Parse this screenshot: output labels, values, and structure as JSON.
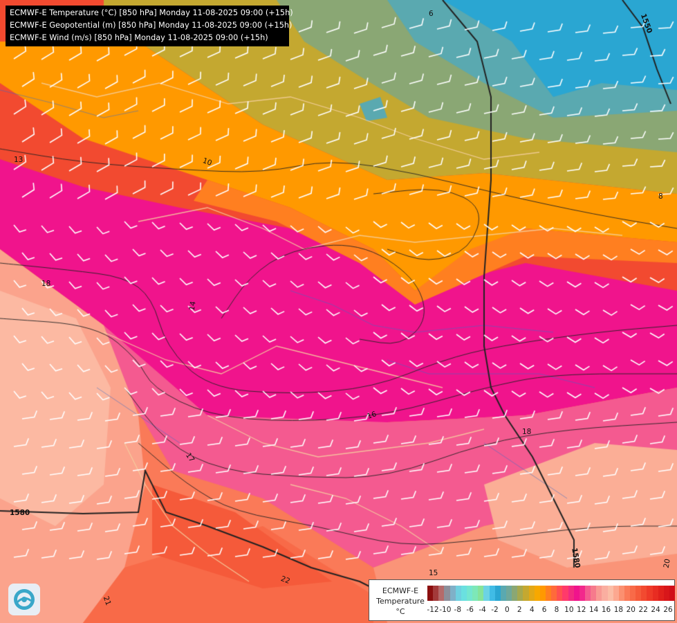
{
  "title_lines": [
    "ECMWF-E Temperature (°C) [850 hPa] Monday 11-08-2025 09:00 (+15h)",
    "ECMWF-E Geopotential (m) [850 hPa] Monday 11-08-2025 09:00 (+15h)",
    "ECMWF-E Wind (m/s) [850 hPa] Monday 11-08-2025 09:00 (+15h)"
  ],
  "legend": {
    "line1": "ECMWF-E",
    "line2": "Temperature",
    "line3": "°C",
    "ticks": [
      "-12",
      "-10",
      "-8",
      "-6",
      "-4",
      "-2",
      "0",
      "2",
      "4",
      "6",
      "8",
      "10",
      "12",
      "14",
      "16",
      "18",
      "20",
      "22",
      "24",
      "26"
    ],
    "colors": [
      "#8b0f0f",
      "#a33a3a",
      "#b56a6a",
      "#8c8f9a",
      "#7fb0c8",
      "#6fd0e0",
      "#6ae0e0",
      "#74e6d0",
      "#7de8b8",
      "#86e39a",
      "#6cd3e4",
      "#40bce6",
      "#2aa6d2",
      "#5aa9b0",
      "#6fa89a",
      "#8aa774",
      "#a6a84e",
      "#c4a830",
      "#e2a816",
      "#f7a800",
      "#ff9900",
      "#ff7f20",
      "#ff6a3a",
      "#ff5050",
      "#ff3a6a",
      "#f22a80",
      "#f0148c",
      "#f2288c",
      "#f45a90",
      "#f67a8c",
      "#f89a94",
      "#faaea0",
      "#fbbda6",
      "#fca890",
      "#fb9070",
      "#fa7a58",
      "#f86a48",
      "#f55a3a",
      "#f24a30",
      "#ee3a28",
      "#e82c22",
      "#e0201c",
      "#d8161a",
      "#d00e18"
    ]
  },
  "contour_labels": [
    {
      "text": "6"
    },
    {
      "text": "1550"
    },
    {
      "text": "10"
    },
    {
      "text": "13"
    },
    {
      "text": "18"
    },
    {
      "text": "14"
    },
    {
      "text": "16"
    },
    {
      "text": "18"
    },
    {
      "text": "17"
    },
    {
      "text": "1580"
    },
    {
      "text": "1580"
    },
    {
      "text": "15"
    },
    {
      "text": "22"
    },
    {
      "text": "21"
    },
    {
      "text": "20"
    },
    {
      "text": "8"
    }
  ],
  "colors": {
    "hot": "#f24a30",
    "magenta": "#f0148c",
    "pink": "#f45a90",
    "orange": "#ff9900",
    "gold": "#c4a830",
    "olive": "#8aa774",
    "teal": "#5aa9b0",
    "blue": "#2aa6d2",
    "salmon": "#fa7a58"
  }
}
